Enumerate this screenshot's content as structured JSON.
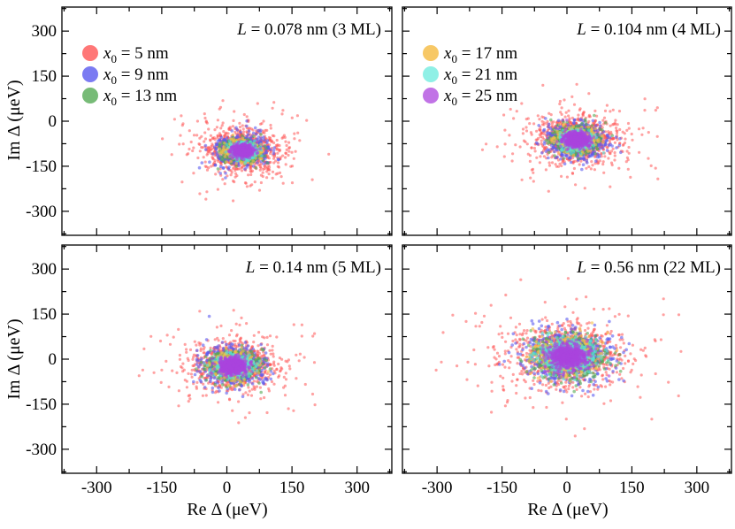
{
  "chart_data": {
    "type": "scatter",
    "layout": "2x2 panels, shared axes",
    "xlabel": "Re Δ (μeV)",
    "ylabel": "Im Δ (μeV)",
    "xlim": [
      -380,
      380
    ],
    "ylim": [
      -380,
      380
    ],
    "xticks": [
      -300,
      -150,
      0,
      150,
      300
    ],
    "yticks": [
      300,
      150,
      0,
      -150,
      -300
    ],
    "xtick_labels": [
      "-300",
      "-150",
      "0",
      "150",
      "300"
    ],
    "ytick_labels": [
      "300",
      "150",
      "0",
      "-150",
      "-300"
    ],
    "series_colors": {
      "x0 = 5 nm": "#ff5555",
      "x0 = 9 nm": "#5c5cf0",
      "x0 = 13 nm": "#55aa55",
      "x0 = 17 nm": "#f5c04a",
      "x0 = 21 nm": "#55e0d5",
      "x0 = 25 nm": "#aa44dd"
    },
    "panels": [
      {
        "id": "top-left",
        "title": "L = 0.078 nm (3 ML)",
        "title_L": "L",
        "title_rest": " = 0.078 nm (3 ML)",
        "legend": [
          {
            "sub": "0",
            "text": " = 5 nm",
            "color": "#ff7777"
          },
          {
            "sub": "0",
            "text": " = 9 nm",
            "color": "#7b7bf2"
          },
          {
            "sub": "0",
            "text": " = 13 nm",
            "color": "#77bb77"
          }
        ],
        "center": [
          37,
          -98
        ],
        "radii": {
          "x0 = 5 nm": 68,
          "x0 = 9 nm": 45,
          "x0 = 13 nm": 32,
          "x0 = 17 nm": 26,
          "x0 = 21 nm": 22,
          "x0 = 25 nm": 18
        }
      },
      {
        "id": "top-right",
        "title": "L = 0.104 nm (4 ML)",
        "title_L": "L",
        "title_rest": " = 0.104 nm (4 ML)",
        "legend": [
          {
            "sub": "0",
            "text": " = 17 nm",
            "color": "#f7c866"
          },
          {
            "sub": "0",
            "text": " = 21 nm",
            "color": "#8ff0e6"
          },
          {
            "sub": "0",
            "text": " = 25 nm",
            "color": "#c173e6"
          }
        ],
        "center": [
          22,
          -62
        ],
        "radii": {
          "x0 = 5 nm": 75,
          "x0 = 9 nm": 52,
          "x0 = 13 nm": 38,
          "x0 = 17 nm": 30,
          "x0 = 21 nm": 25,
          "x0 = 25 nm": 22
        }
      },
      {
        "id": "bottom-left",
        "title": "L = 0.14 nm (5 ML)",
        "title_L": "L",
        "title_rest": " = 0.14 nm (5 ML)",
        "legend": [],
        "center": [
          15,
          -22
        ],
        "radii": {
          "x0 = 5 nm": 75,
          "x0 = 9 nm": 55,
          "x0 = 13 nm": 42,
          "x0 = 17 nm": 34,
          "x0 = 21 nm": 28,
          "x0 = 25 nm": 25
        }
      },
      {
        "id": "bottom-right",
        "title": "L = 0.56 nm (22 ML)",
        "title_L": "L",
        "title_rest": " = 0.56 nm (22 ML)",
        "legend": [],
        "center": [
          2,
          10
        ],
        "radii": {
          "x0 = 5 nm": 105,
          "x0 = 9 nm": 78,
          "x0 = 13 nm": 62,
          "x0 = 17 nm": 52,
          "x0 = 21 nm": 45,
          "x0 = 25 nm": 38
        }
      }
    ]
  }
}
